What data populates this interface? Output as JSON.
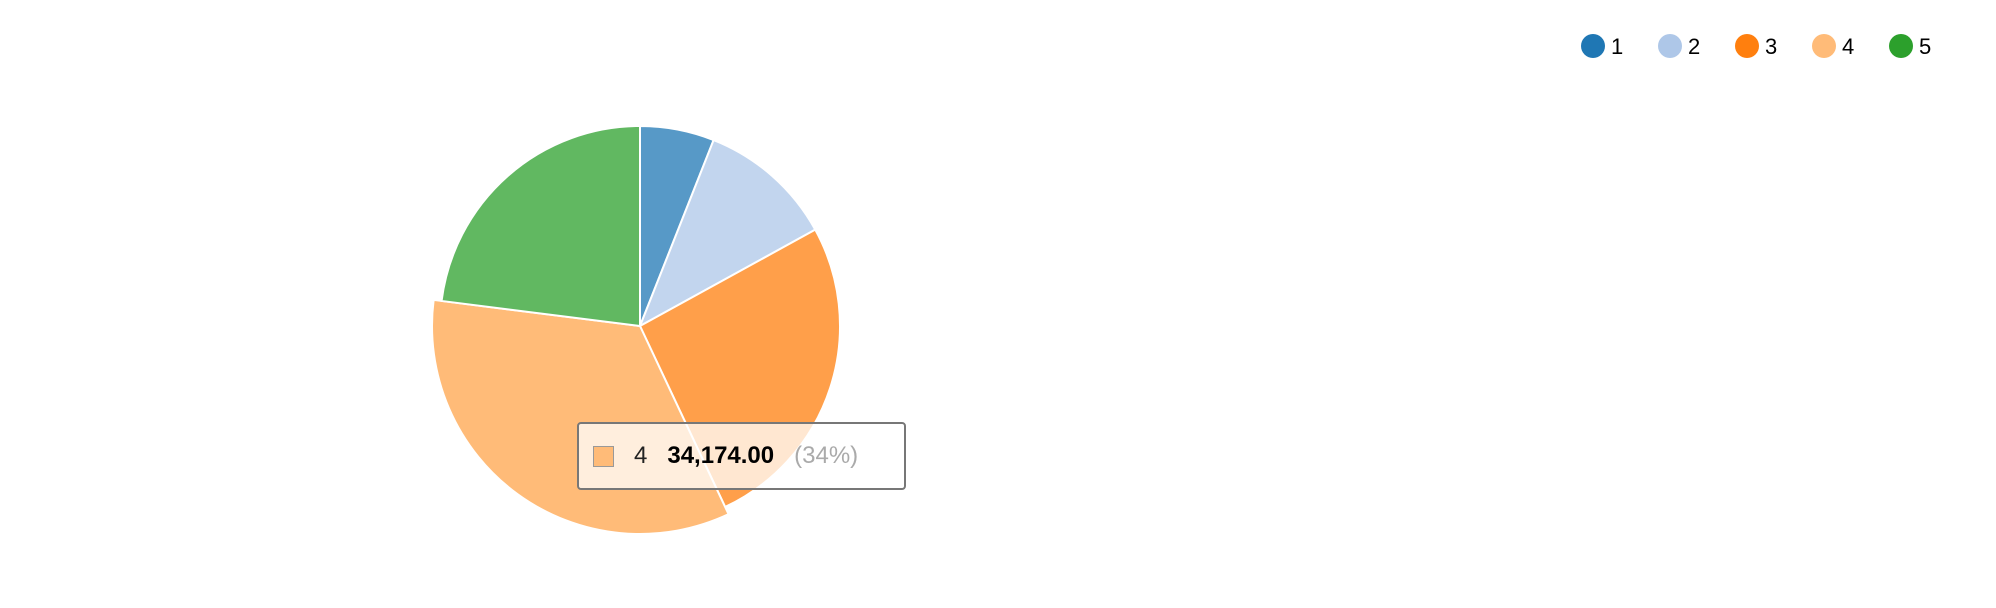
{
  "chart_data": {
    "type": "pie",
    "categories": [
      "1",
      "2",
      "3",
      "4",
      "5"
    ],
    "values": [
      6,
      11,
      26,
      34,
      23
    ],
    "colors": [
      "#1f77b4",
      "#aec7e8",
      "#ff7f0e",
      "#ffbb78",
      "#2ca02c"
    ],
    "highlighted": "4",
    "legend_position": "top-right"
  },
  "legend": [
    {
      "label": "1",
      "color": "#1f77b4"
    },
    {
      "label": "2",
      "color": "#aec7e8"
    },
    {
      "label": "3",
      "color": "#ff7f0e"
    },
    {
      "label": "4",
      "color": "#ffbb78"
    },
    {
      "label": "5",
      "color": "#2ca02c"
    }
  ],
  "tooltip": {
    "key": "4",
    "value": "34,174.00",
    "percent": "(34%)",
    "color": "#ffbb78"
  }
}
